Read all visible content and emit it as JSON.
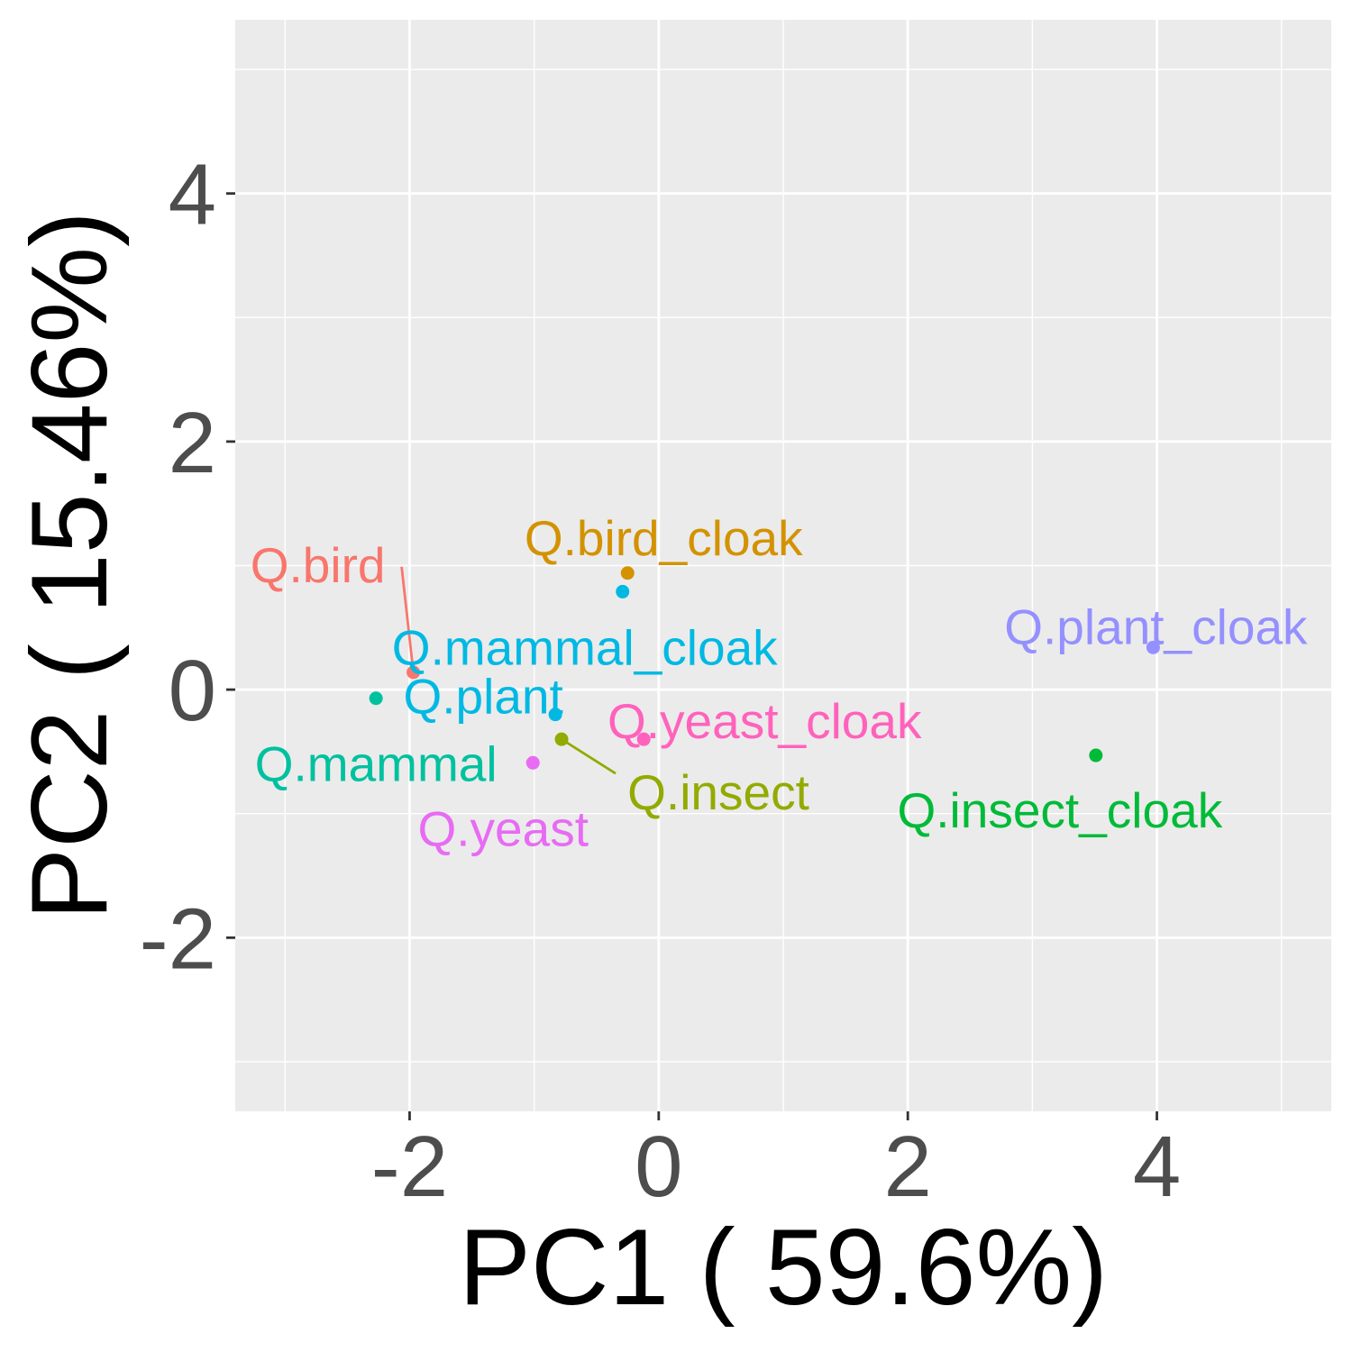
{
  "chart_data": {
    "type": "scatter",
    "title": "",
    "xlabel": "PC1 ( 59.6%)",
    "ylabel": "PC2 ( 15.46%)",
    "xlim": [
      -3.4,
      5.4
    ],
    "ylim": [
      -3.4,
      5.4
    ],
    "x_ticks": [
      -2,
      0,
      2,
      4
    ],
    "y_ticks": [
      -2,
      0,
      2,
      4
    ],
    "x_tick_labels": [
      "-2",
      "0",
      "2",
      "4"
    ],
    "y_tick_labels": [
      "-2",
      "0",
      "2",
      "4"
    ],
    "grid": true,
    "legend": "none",
    "panel_background": "#ebebeb",
    "grid_color": "#ffffff",
    "points": [
      {
        "label": "Q.bird",
        "x": -1.97,
        "y": 0.14,
        "color": "#F8766D"
      },
      {
        "label": "Q.bird_cloak",
        "x": -0.25,
        "y": 0.94,
        "color": "#D39200"
      },
      {
        "label": "Q.insect",
        "x": -0.78,
        "y": -0.4,
        "color": "#93AA00"
      },
      {
        "label": "Q.insect_cloak",
        "x": 3.51,
        "y": -0.53,
        "color": "#00BA38"
      },
      {
        "label": "Q.mammal",
        "x": -2.27,
        "y": -0.07,
        "color": "#00C19F"
      },
      {
        "label": "Q.mammal_cloak",
        "x": -0.29,
        "y": 0.79,
        "color": "#00B9E3"
      },
      {
        "label": "Q.plant",
        "x": -0.83,
        "y": -0.2,
        "color": "#00B9E3"
      },
      {
        "label": "Q.plant_cloak",
        "x": 3.97,
        "y": 0.34,
        "color": "#9590FF"
      },
      {
        "label": "Q.yeast",
        "x": -1.01,
        "y": -0.59,
        "color": "#E76BF3"
      },
      {
        "label": "Q.yeast_cloak",
        "x": -0.12,
        "y": -0.4,
        "color": "#FF62BC"
      }
    ]
  }
}
